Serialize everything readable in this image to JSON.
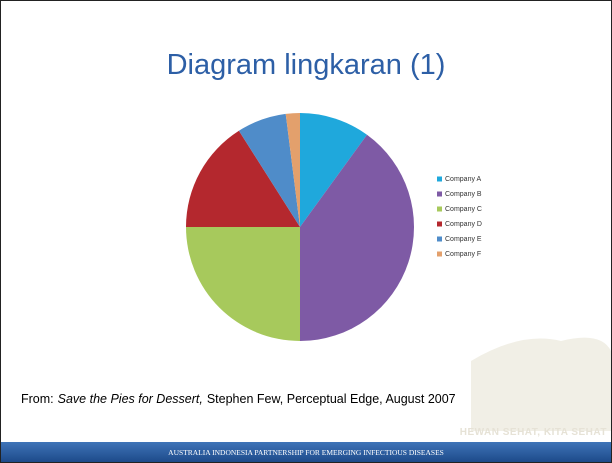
{
  "slide": {
    "title": "Diagram lingkaran (1)",
    "source": {
      "prefix": "From:",
      "work": "Save the Pies for Dessert,",
      "rest": "Stephen Few, Perceptual Edge, August 2007"
    },
    "watermark": "HEWAN SEHAT, KITA SEHAT",
    "footer": "AUSTRALIA INDONESIA PARTNERSHIP FOR EMERGING INFECTIOUS DISEASES"
  },
  "chart_data": {
    "type": "pie",
    "categories": [
      "Company A",
      "Company B",
      "Company C",
      "Company D",
      "Company E",
      "Company F"
    ],
    "values": [
      10,
      40,
      25,
      16,
      7,
      2
    ],
    "colors": [
      "#1fa8dc",
      "#7e5aa5",
      "#a7c95c",
      "#b4282e",
      "#4f8cc9",
      "#e3a06c"
    ],
    "legend": "right"
  }
}
